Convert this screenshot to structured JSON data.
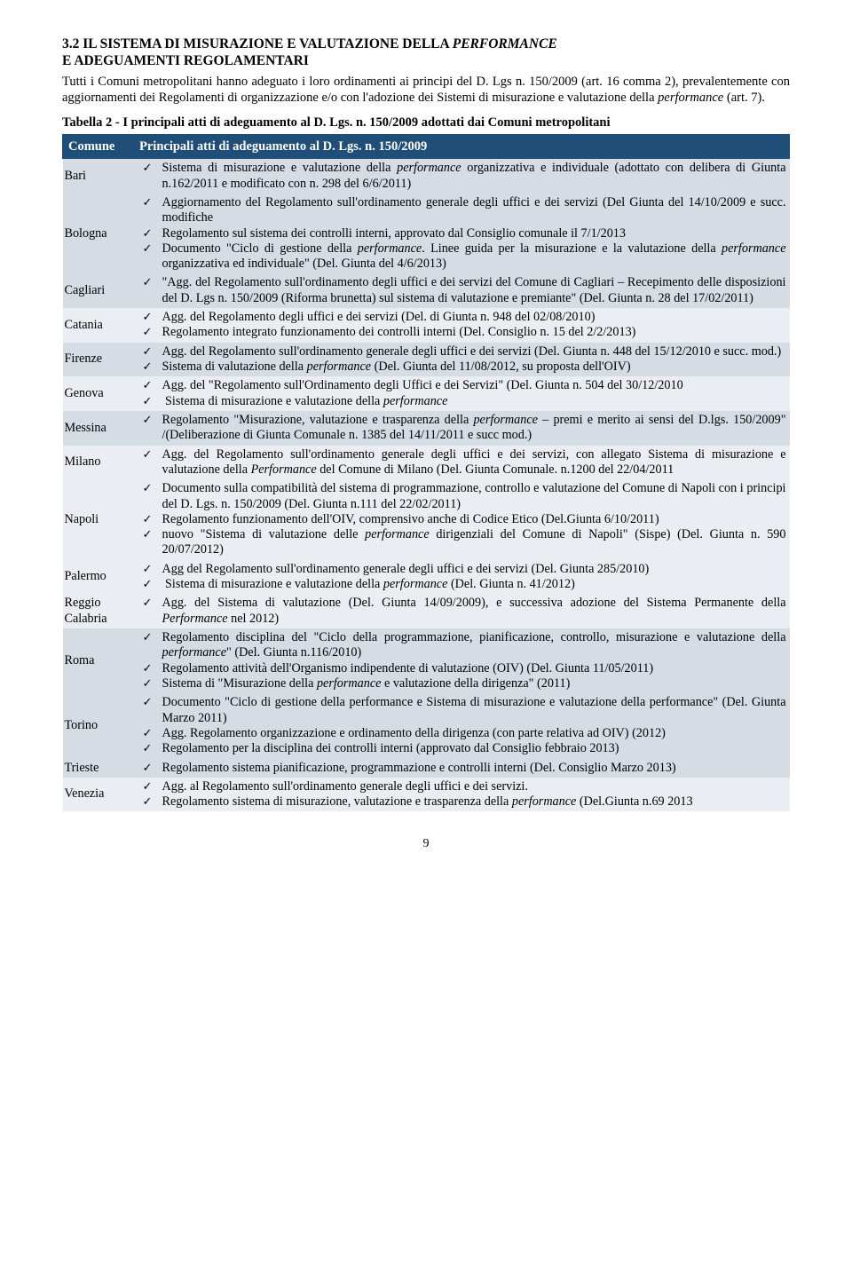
{
  "heading_line1": "3.2 IL SISTEMA DI MISURAZIONE E VALUTAZIONE DELLA ",
  "heading_italic": "PERFORMANCE",
  "heading_line2": "E ADEGUAMENTI REGOLAMENTARI",
  "intro_a": "Tutti i Comuni metropolitani hanno adeguato i loro ordinamenti ai principi del D. Lgs n. 150/2009 (art. 16 comma 2), prevalentemente con aggiornamenti dei Regolamenti di organizzazione e/o con l'adozione dei Sistemi di misurazione e valutazione della ",
  "intro_perf": "performance",
  "intro_b": " (art. 7).",
  "table_caption": "Tabella 2 - I principali atti di adeguamento al D. Lgs. n. 150/2009 adottati dai Comuni metropolitani",
  "th_col1": "Comune",
  "th_col2": "Principali atti di adeguamento al D. Lgs. n. 150/2009",
  "rows": [
    {
      "city": "Bari",
      "band": "a",
      "items": [
        "Sistema di misurazione e valutazione della <span class='it'>performance</span> organizzativa e individuale (adottato con delibera di Giunta n.162/2011 e modificato con n. 298 del 6/6/2011)"
      ]
    },
    {
      "city": "Bologna",
      "band": "a",
      "items": [
        "Aggiornamento del Regolamento sull'ordinamento generale degli uffici e dei servizi (Del Giunta del 14/10/2009 e succ. modifiche",
        "Regolamento sul sistema dei controlli interni, approvato dal Consiglio comunale il 7/1/2013",
        "Documento \"Ciclo di gestione della <span class='it'>performance</span>. Linee guida per la misurazione e la valutazione della <span class='it'>performance</span> organizzativa ed individuale\" (Del. Giunta del 4/6/2013)"
      ]
    },
    {
      "city": "Cagliari",
      "band": "a",
      "items": [
        "\"Agg. del Regolamento sull'ordinamento degli uffici e dei servizi del Comune di Cagliari – Recepimento delle disposizioni del D. Lgs n. 150/2009 (Riforma brunetta) sul sistema di valutazione e premiante\" (Del. Giunta n. 28 del 17/02/2011)"
      ]
    },
    {
      "city": "Catania",
      "band": "b",
      "items": [
        "Agg. del Regolamento degli uffici e dei servizi (Del. di Giunta n. 948 del 02/08/2010)",
        "Regolamento integrato funzionamento dei controlli interni (Del. Consiglio n. 15 del 2/2/2013)"
      ]
    },
    {
      "city": "Firenze",
      "band": "a",
      "items": [
        "Agg. del Regolamento sull'ordinamento generale degli uffici e dei servizi (Del. Giunta n. 448 del 15/12/2010 e succ. mod.)",
        "Sistema di valutazione della <span class='it'>performance</span> (Del. Giunta del 11/08/2012, su proposta dell'OIV)"
      ]
    },
    {
      "city": "Genova",
      "band": "b",
      "items": [
        "Agg. del \"Regolamento sull'Ordinamento degli Uffici e dei Servizi\" (Del. Giunta n. 504 del 30/12/2010",
        "&nbsp;Sistema di misurazione e valutazione della <span class='it'>performance</span>"
      ]
    },
    {
      "city": "Messina",
      "band": "a",
      "items": [
        "Regolamento \"Misurazione, valutazione e trasparenza della <span class='it'>performance</span> – premi e merito ai sensi del D.lgs. 150/2009\" /(Deliberazione di Giunta Comunale n. 1385 del 14/11/2011 e succ mod.)"
      ]
    },
    {
      "city": "Milano",
      "band": "b",
      "items": [
        "Agg. del Regolamento sull'ordinamento generale degli uffici e dei servizi, con allegato Sistema di misurazione e valutazione della <span class='it'>Performance</span> del Comune di Milano (Del. Giunta Comunale. n.1200 del 22/04/2011"
      ]
    },
    {
      "city": "Napoli",
      "band": "b",
      "items": [
        "Documento sulla compatibilità del sistema di programmazione, controllo e valutazione del Comune di Napoli con i principi del D. Lgs. n. 150/2009 (Del. Giunta n.111 del 22/02/2011)",
        "Regolamento funzionamento dell'OIV, comprensivo anche di Codice Etico (Del.Giunta  6/10/2011)",
        "nuovo \"Sistema di valutazione delle <span class='it'>performance</span> dirigenziali del Comune di Napoli\" (Sispe) (Del. Giunta n. 590 20/07/2012)"
      ]
    },
    {
      "city": "Palermo",
      "band": "b",
      "items": [
        "Agg del Regolamento sull'ordinamento generale degli uffici e dei servizi (Del. Giunta 285/2010)",
        "&nbsp;Sistema di misurazione e valutazione della <span class='it'>performance</span> (Del. Giunta n. 41/2012)"
      ]
    },
    {
      "city": "Reggio Calabria",
      "band": "b",
      "items": [
        "Agg. del Sistema di valutazione (Del. Giunta 14/09/2009), e successiva adozione del Sistema Permanente della <span class='it'>Performance</span> nel 2012)"
      ]
    },
    {
      "city": "Roma",
      "band": "a",
      "items": [
        "Regolamento disciplina del \"Ciclo della programmazione, pianificazione, controllo, misurazione e valutazione della <span class='it'>performance</span>\" (Del. Giunta  n.116/2010)",
        "Regolamento attività dell'Organismo indipendente di valutazione (OIV) (Del. Giunta 11/05/2011)",
        "Sistema di \"Misurazione della <span class='it'>performance</span> e valutazione della dirigenza\" (2011)"
      ]
    },
    {
      "city": "Torino",
      "band": "a",
      "items": [
        "Documento \"Ciclo di gestione della performance e Sistema di misurazione e valutazione della performance\" (Del. Giunta Marzo 2011)",
        "Agg. Regolamento organizzazione e ordinamento della dirigenza (con parte relativa ad OIV) (2012)",
        "Regolamento per la disciplina dei controlli interni (approvato dal Consiglio febbraio 2013)"
      ]
    },
    {
      "city": "Trieste",
      "band": "a",
      "items": [
        "Regolamento sistema pianificazione, programmazione e controlli interni (Del. Consiglio Marzo 2013)"
      ]
    },
    {
      "city": "Venezia",
      "band": "b",
      "items": [
        "Agg. al Regolamento sull'ordinamento generale degli uffici e dei servizi.",
        "Regolamento sistema di misurazione, valutazione e trasparenza della <span class='it'>performance</span> (Del.Giunta n.69 2013"
      ]
    }
  ],
  "page_number": "9"
}
